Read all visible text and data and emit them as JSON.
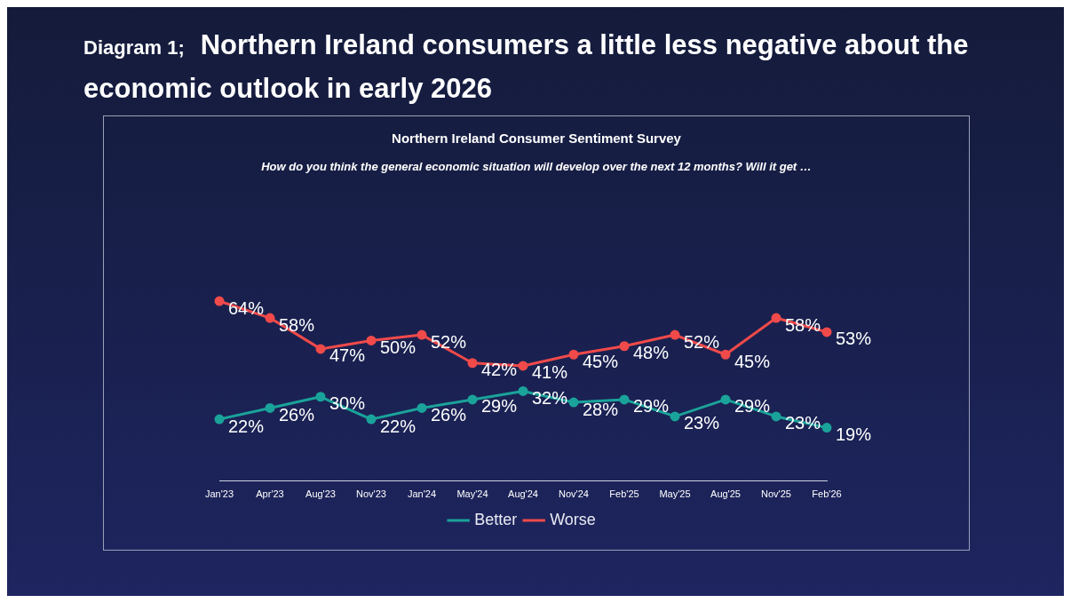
{
  "chart_data": {
    "type": "line",
    "title": "Northern Ireland consumers a little less negative about the economic outlook in early 2026",
    "subtitle": "Northern Ireland Consumer Sentiment Survey",
    "annotations": [
      "Diagram 1;",
      "How do you think the general economic situation will develop over the next 12 months? Will it get …"
    ],
    "categories": [
      "Jan'23",
      "Apr'23",
      "Aug'23",
      "Nov'23",
      "Jan'24",
      "May'24",
      "Aug'24",
      "Nov'24",
      "Feb'25",
      "May'25",
      "Aug'25",
      "Nov'25",
      "Feb'26"
    ],
    "series": [
      {
        "name": "Better",
        "color": "#1aa39a",
        "values": [
          22,
          26,
          30,
          22,
          26,
          29,
          32,
          28,
          29,
          23,
          29,
          23,
          19
        ],
        "value_labels": [
          "22%",
          "26%",
          "30%",
          "22%",
          "26%",
          "29%",
          "32%",
          "28%",
          "29%",
          "23%",
          "29%",
          "23%",
          "19%"
        ]
      },
      {
        "name": "Worse",
        "color": "#f04a4a",
        "values": [
          64,
          58,
          47,
          50,
          52,
          42,
          41,
          45,
          48,
          52,
          45,
          58,
          53
        ],
        "value_labels": [
          "64%",
          "58%",
          "47%",
          "50%",
          "52%",
          "42%",
          "41%",
          "45%",
          "48%",
          "52%",
          "45%",
          "58%",
          "53%"
        ]
      }
    ],
    "legend": "bottom",
    "grid": false,
    "marker": "circle",
    "line_style": "solid"
  }
}
